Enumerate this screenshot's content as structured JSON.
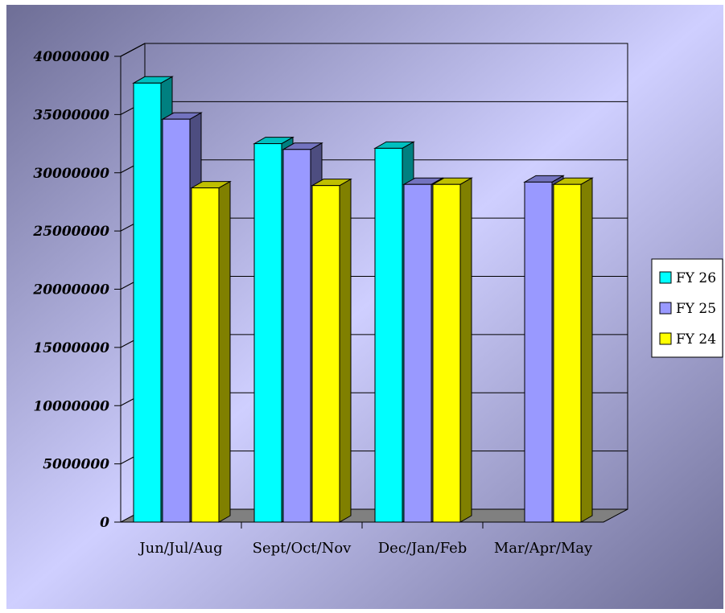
{
  "chart_data": {
    "type": "bar",
    "categories": [
      "Jun/Jul/Aug",
      "Sept/Oct/Nov",
      "Dec/Jan/Feb",
      "Mar/Apr/May"
    ],
    "series": [
      {
        "name": "FY 26",
        "values": [
          37700000,
          32500000,
          32100000,
          null
        ],
        "color": "#00ffff"
      },
      {
        "name": "FY 25",
        "values": [
          34600000,
          32000000,
          29000000,
          29200000
        ],
        "color": "#9999ff"
      },
      {
        "name": "FY 24",
        "values": [
          28700000,
          28900000,
          29000000,
          29000000
        ],
        "color": "#ffff00"
      }
    ],
    "y_ticks": [
      "0",
      "5000000",
      "10000000",
      "15000000",
      "20000000",
      "25000000",
      "30000000",
      "35000000",
      "40000000"
    ],
    "ylim": [
      0,
      40000000
    ],
    "grid": true,
    "legend_position": "right",
    "title": "",
    "xlabel": "",
    "ylabel": ""
  },
  "background": {
    "gradient_dark": "#6e6e96",
    "gradient_light": "#cfcfff"
  },
  "floor_color": "#808080"
}
